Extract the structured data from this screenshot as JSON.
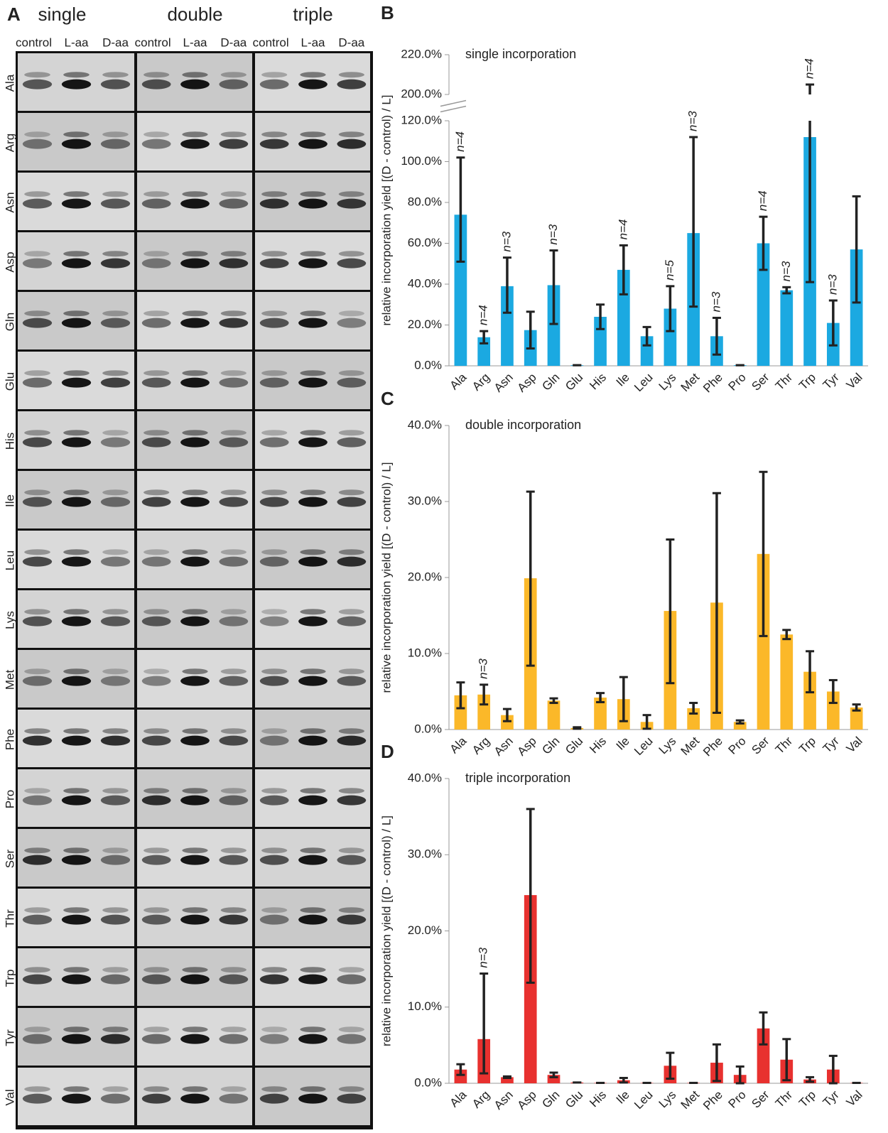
{
  "panel_a": {
    "label": "A",
    "groups": [
      "single",
      "double",
      "triple"
    ],
    "lanes": [
      "control",
      "L-aa",
      "D-aa"
    ],
    "rows": [
      "Ala",
      "Arg",
      "Asn",
      "Asp",
      "Gln",
      "Glu",
      "His",
      "Ile",
      "Leu",
      "Lys",
      "Met",
      "Phe",
      "Pro",
      "Ser",
      "Thr",
      "Trp",
      "Tyr",
      "Val"
    ]
  },
  "chart_data": [
    {
      "type": "bar",
      "label": "B",
      "title": "single incorporation",
      "y_label": "relative incorporation yield [(D - control) / L]",
      "color": "#1ba9e1",
      "categories": [
        "Ala",
        "Arg",
        "Asn",
        "Asp",
        "Gln",
        "Glu",
        "His",
        "Ile",
        "Leu",
        "Lys",
        "Met",
        "Phe",
        "Pro",
        "Ser",
        "Thr",
        "Trp",
        "Tyr",
        "Val"
      ],
      "values": [
        74,
        14,
        39,
        17.5,
        39.5,
        0.3,
        24,
        47,
        14.5,
        28,
        65,
        14.5,
        0.3,
        60,
        37,
        112,
        21,
        57
      ],
      "errors": [
        [
          23,
          28
        ],
        [
          3,
          3
        ],
        [
          13,
          14
        ],
        [
          9,
          9
        ],
        [
          19,
          17
        ],
        [
          0,
          0
        ],
        [
          6,
          6
        ],
        [
          12,
          12
        ],
        [
          4.5,
          4.5
        ],
        [
          11,
          11
        ],
        [
          36,
          47
        ],
        [
          9,
          9
        ],
        [
          0,
          0
        ],
        [
          13,
          13
        ],
        [
          1.5,
          1.5
        ],
        [
          71,
          93
        ],
        [
          11,
          11
        ],
        [
          26,
          26
        ]
      ],
      "annotations": [
        "n=4",
        "n=4",
        "n=3",
        null,
        "n=3",
        null,
        null,
        "n=4",
        null,
        "n=5",
        "n=3",
        "n=3",
        null,
        "n=4",
        "n=3",
        "n=4",
        "n=3",
        null
      ],
      "ylim": [
        0,
        220
      ],
      "axis_break": [
        120,
        200
      ],
      "yticks": [
        {
          "value": 0,
          "label": "0.0%"
        },
        {
          "value": 20,
          "label": "20.0%"
        },
        {
          "value": 40,
          "label": "40.0%"
        },
        {
          "value": 60,
          "label": "60.0%"
        },
        {
          "value": 80,
          "label": "80.0%"
        },
        {
          "value": 100,
          "label": "100.0%"
        },
        {
          "value": 120,
          "label": "120.0%"
        },
        {
          "value": 200,
          "label": "200.0%"
        },
        {
          "value": 220,
          "label": "220.0%"
        }
      ]
    },
    {
      "type": "bar",
      "label": "C",
      "title": "double incorporation",
      "y_label": "relative incorporation yield [(D - control) / L]",
      "color": "#fbb829",
      "categories": [
        "Ala",
        "Arg",
        "Asn",
        "Asp",
        "Gln",
        "Glu",
        "His",
        "Ile",
        "Leu",
        "Lys",
        "Met",
        "Phe",
        "Pro",
        "Ser",
        "Thr",
        "Trp",
        "Tyr",
        "Val"
      ],
      "values": [
        4.5,
        4.6,
        1.9,
        19.9,
        3.8,
        0.2,
        4.2,
        4.0,
        1.0,
        15.6,
        2.8,
        16.7,
        1.0,
        23.1,
        12.5,
        7.6,
        5.0,
        2.9
      ],
      "errors": [
        [
          1.7,
          1.7
        ],
        [
          1.3,
          1.3
        ],
        [
          0.8,
          0.8
        ],
        [
          11.5,
          11.4
        ],
        [
          0.3,
          0.3
        ],
        [
          0.1,
          0.1
        ],
        [
          0.6,
          0.6
        ],
        [
          2.9,
          2.9
        ],
        [
          0.9,
          0.9
        ],
        [
          9.5,
          9.4
        ],
        [
          0.7,
          0.7
        ],
        [
          14.5,
          14.4
        ],
        [
          0.2,
          0.2
        ],
        [
          10.8,
          10.8
        ],
        [
          0.6,
          0.6
        ],
        [
          2.7,
          2.7
        ],
        [
          1.5,
          1.5
        ],
        [
          0.4,
          0.4
        ]
      ],
      "annotations": [
        null,
        "n=3",
        null,
        null,
        null,
        null,
        null,
        null,
        null,
        null,
        null,
        null,
        null,
        null,
        null,
        null,
        null,
        null
      ],
      "ylim": [
        0,
        40
      ],
      "yticks": [
        {
          "value": 0,
          "label": "0.0%"
        },
        {
          "value": 10,
          "label": "10.0%"
        },
        {
          "value": 20,
          "label": "20.0%"
        },
        {
          "value": 30,
          "label": "30.0%"
        },
        {
          "value": 40,
          "label": "40.0%"
        }
      ]
    },
    {
      "type": "bar",
      "label": "D",
      "title": "triple incorporation",
      "y_label": "relative incorporation yield [(D - control) / L]",
      "color": "#e8312f",
      "categories": [
        "Ala",
        "Arg",
        "Asn",
        "Asp",
        "Gln",
        "Glu",
        "His",
        "Ile",
        "Leu",
        "Lys",
        "Met",
        "Phe",
        "Pro",
        "Ser",
        "Thr",
        "Trp",
        "Tyr",
        "Val"
      ],
      "values": [
        1.8,
        5.8,
        0.8,
        24.7,
        1.1,
        0.1,
        0.05,
        0.4,
        0.05,
        2.3,
        0.05,
        2.7,
        1.1,
        7.2,
        3.1,
        0.5,
        1.8,
        0.05
      ],
      "errors": [
        [
          0.7,
          0.7
        ],
        [
          4.5,
          8.6
        ],
        [
          0.1,
          0.1
        ],
        [
          11.5,
          11.3
        ],
        [
          0.3,
          0.3
        ],
        [
          0,
          0
        ],
        [
          0,
          0
        ],
        [
          0.3,
          0.3
        ],
        [
          0,
          0
        ],
        [
          1.7,
          1.7
        ],
        [
          0,
          0
        ],
        [
          2.4,
          2.4
        ],
        [
          1.1,
          1.1
        ],
        [
          2.1,
          2.1
        ],
        [
          2.7,
          2.7
        ],
        [
          0.3,
          0.3
        ],
        [
          1.8,
          1.8
        ],
        [
          0,
          0
        ]
      ],
      "annotations": [
        null,
        "n=3",
        null,
        null,
        null,
        null,
        null,
        null,
        null,
        null,
        null,
        null,
        null,
        null,
        null,
        null,
        null,
        null
      ],
      "ylim": [
        0,
        40
      ],
      "yticks": [
        {
          "value": 0,
          "label": "0.0%"
        },
        {
          "value": 10,
          "label": "10.0%"
        },
        {
          "value": 20,
          "label": "20.0%"
        },
        {
          "value": 30,
          "label": "30.0%"
        },
        {
          "value": 40,
          "label": "40.0%"
        }
      ]
    }
  ]
}
